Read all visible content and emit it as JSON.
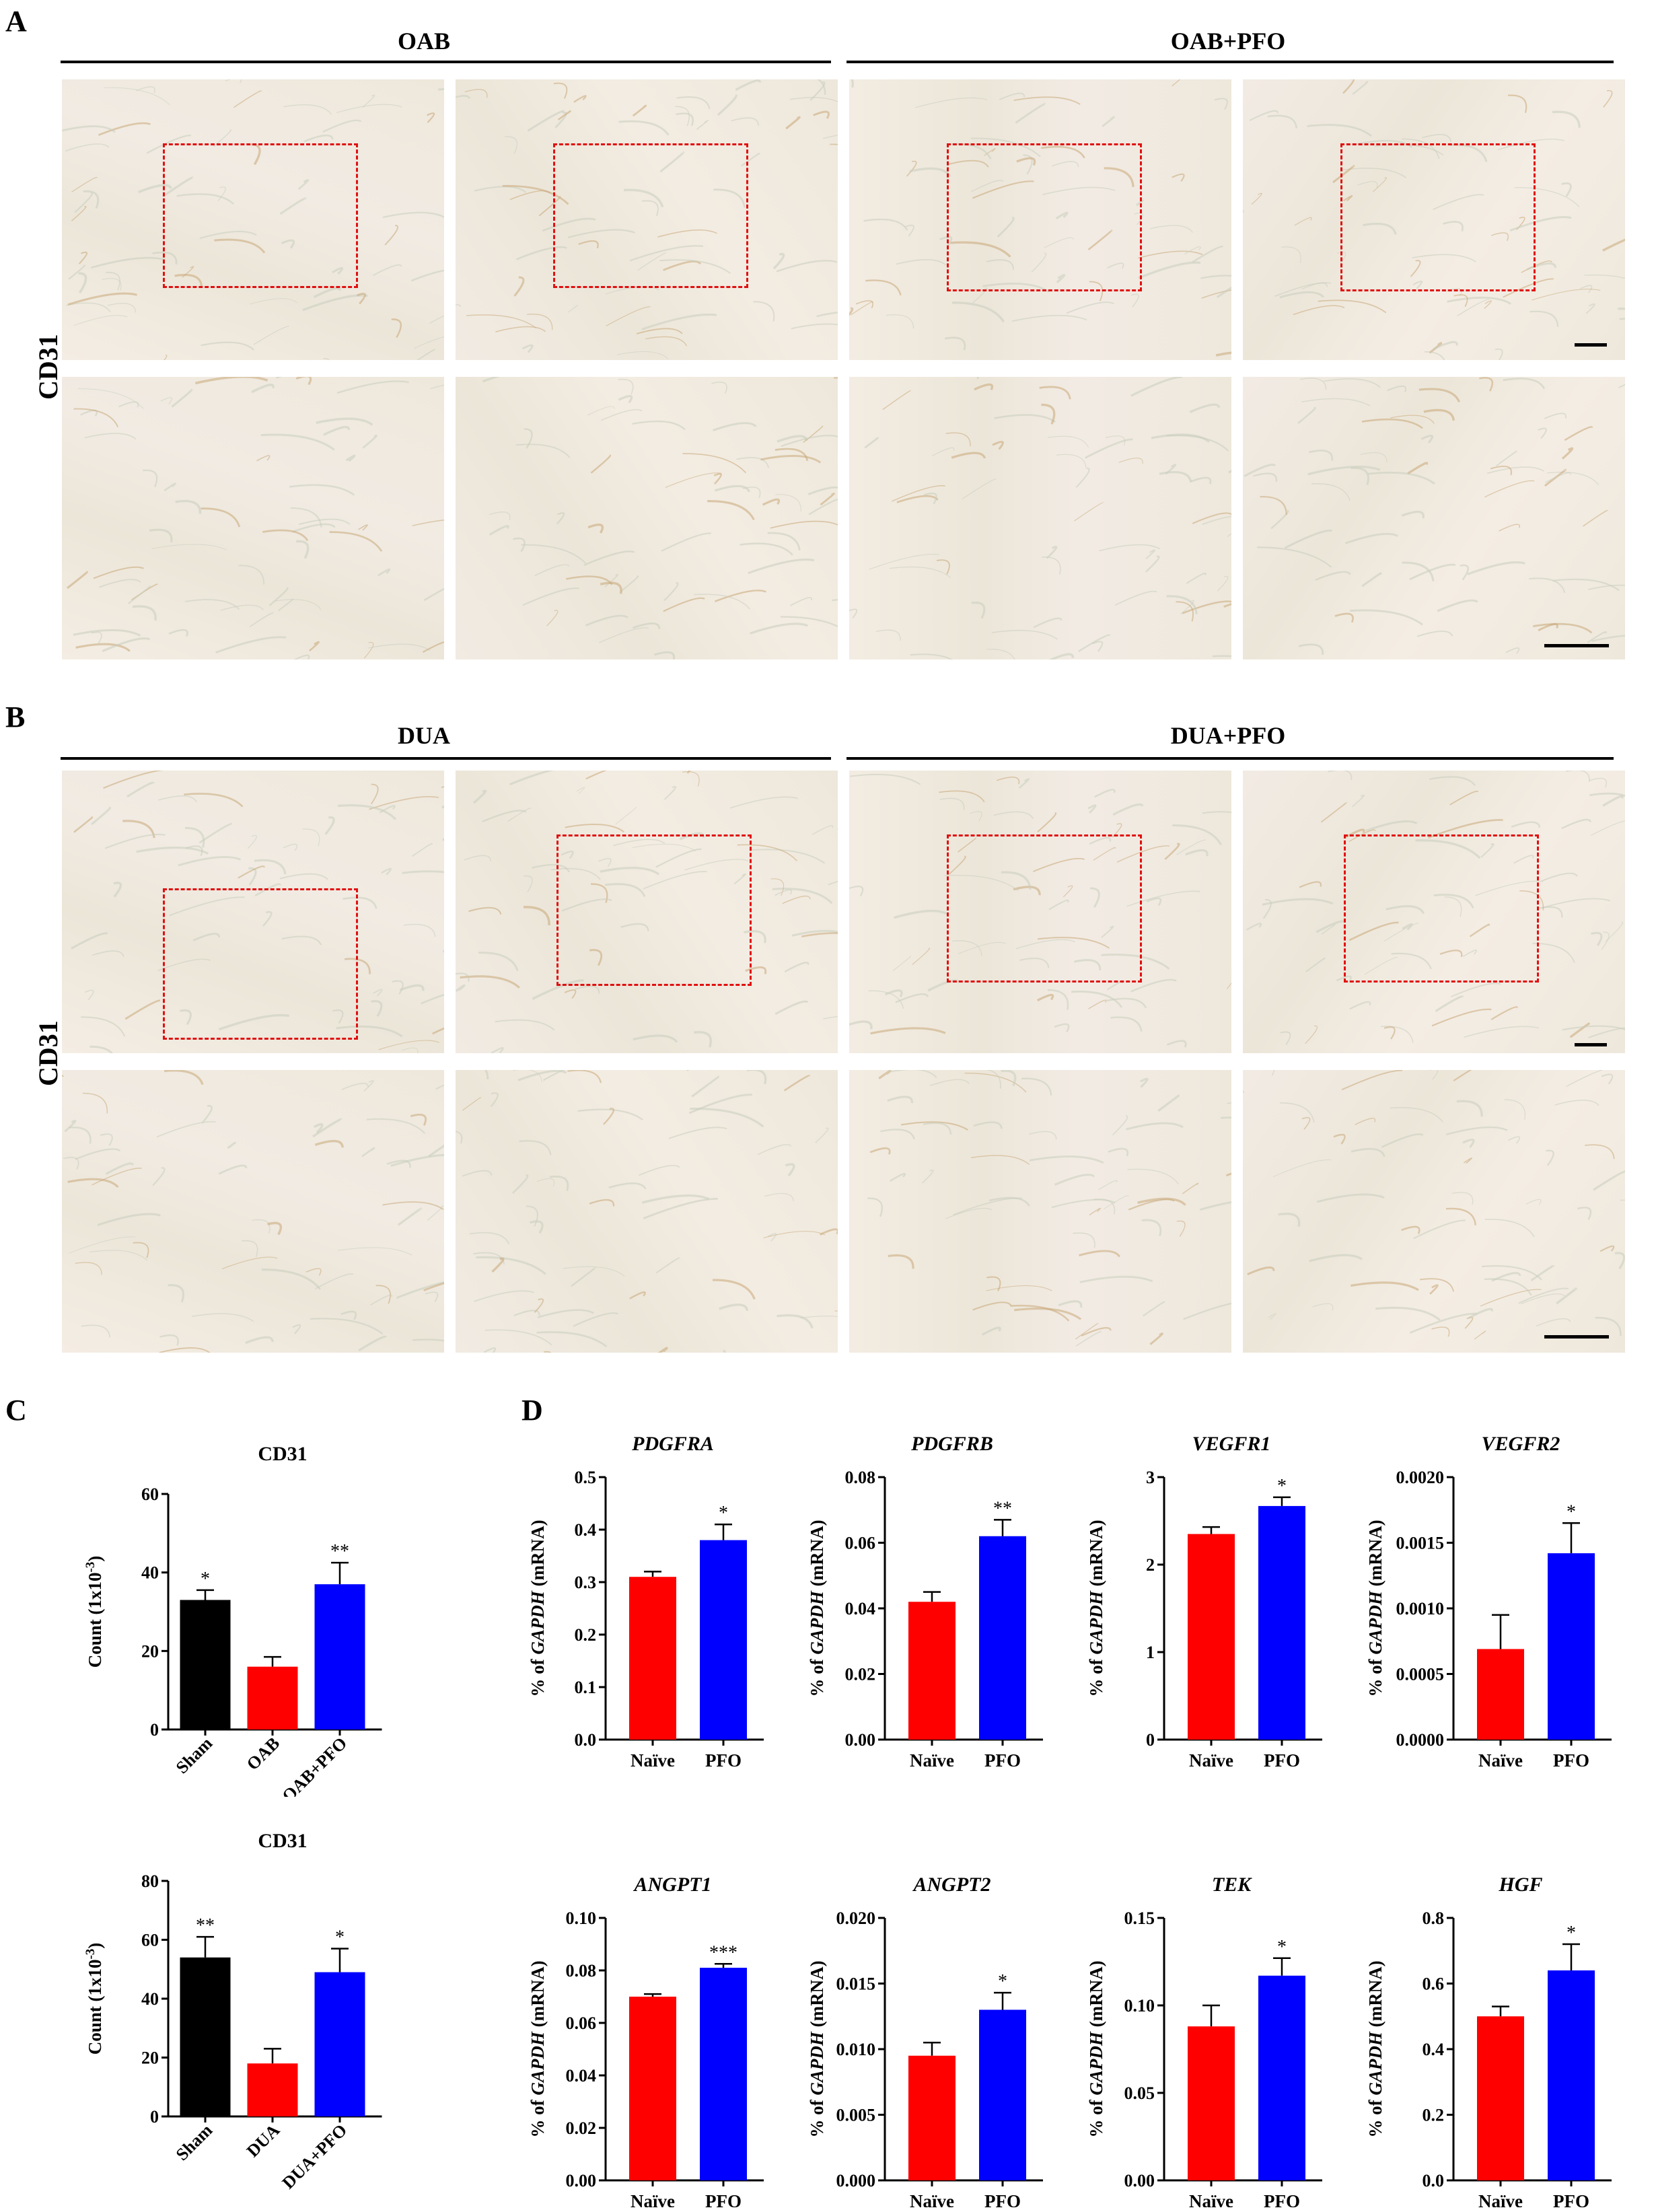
{
  "panels": {
    "A": {
      "letter": "A",
      "groups": [
        "OAB",
        "OAB+PFO"
      ],
      "stain": "CD31"
    },
    "B": {
      "letter": "B",
      "groups": [
        "DUA",
        "DUA+PFO"
      ],
      "stain": "CD31"
    },
    "C": {
      "letter": "C"
    },
    "D": {
      "letter": "D"
    }
  },
  "colors": {
    "sham": "#000000",
    "disease": "#ff0000",
    "treated": "#0000ff",
    "roi": "#e01010",
    "tissue": "#f3ebe2"
  },
  "chart_data": [
    {
      "id": "c1",
      "type": "bar",
      "title": "CD31",
      "ylabel": "Count (1x10-3)",
      "ylim": [
        0,
        60
      ],
      "yticks": [
        0,
        20,
        40,
        60
      ],
      "ytick_labels": [
        "0",
        "20",
        "40",
        "60"
      ],
      "categories": [
        "Sham",
        "OAB",
        "OAB+PFO"
      ],
      "values": [
        33,
        16,
        37
      ],
      "errors": [
        2.5,
        2.5,
        5.5
      ],
      "significance": [
        "*",
        "",
        "**"
      ],
      "colors": [
        "#000000",
        "#ff0000",
        "#0000ff"
      ]
    },
    {
      "id": "c2",
      "type": "bar",
      "title": "CD31",
      "ylabel": "Count (1x10-3)",
      "ylim": [
        0,
        80
      ],
      "yticks": [
        0,
        20,
        40,
        60,
        80
      ],
      "ytick_labels": [
        "0",
        "20",
        "40",
        "60",
        "80"
      ],
      "categories": [
        "Sham",
        "DUA",
        "DUA+PFO"
      ],
      "values": [
        54,
        18,
        49
      ],
      "errors": [
        7,
        5,
        8
      ],
      "significance": [
        "**",
        "",
        "*"
      ],
      "colors": [
        "#000000",
        "#ff0000",
        "#0000ff"
      ]
    },
    {
      "id": "d1",
      "type": "bar",
      "title": "PDGFRA",
      "ylabel_pre": "% of ",
      "ylabel_gene": "GAPDH",
      "ylabel_post": " (mRNA)",
      "ylim": [
        0,
        0.5
      ],
      "yticks": [
        0,
        0.1,
        0.2,
        0.3,
        0.4,
        0.5
      ],
      "ytick_labels": [
        "0.0",
        "0.1",
        "0.2",
        "0.3",
        "0.4",
        "0.5"
      ],
      "categories": [
        "Naïve",
        "PFO"
      ],
      "values": [
        0.31,
        0.38
      ],
      "errors": [
        0.01,
        0.03
      ],
      "significance": [
        "",
        "*"
      ],
      "colors": [
        "#ff0000",
        "#0000ff"
      ]
    },
    {
      "id": "d2",
      "type": "bar",
      "title": "PDGFRB",
      "ylabel_pre": "% of ",
      "ylabel_gene": "GAPDH",
      "ylabel_post": " (mRNA)",
      "ylim": [
        0,
        0.08
      ],
      "yticks": [
        0,
        0.02,
        0.04,
        0.06,
        0.08
      ],
      "ytick_labels": [
        "0.00",
        "0.02",
        "0.04",
        "0.06",
        "0.08"
      ],
      "categories": [
        "Naïve",
        "PFO"
      ],
      "values": [
        0.042,
        0.062
      ],
      "errors": [
        0.003,
        0.005
      ],
      "significance": [
        "",
        "**"
      ],
      "colors": [
        "#ff0000",
        "#0000ff"
      ]
    },
    {
      "id": "d3",
      "type": "bar",
      "title": "VEGFR1",
      "ylabel_pre": "% of ",
      "ylabel_gene": "GAPDH",
      "ylabel_post": " (mRNA)",
      "ylim": [
        0,
        3
      ],
      "yticks": [
        0,
        1,
        2,
        3
      ],
      "ytick_labels": [
        "0",
        "1",
        "2",
        "3"
      ],
      "categories": [
        "Naïve",
        "PFO"
      ],
      "values": [
        2.35,
        2.67
      ],
      "errors": [
        0.08,
        0.1
      ],
      "significance": [
        "",
        "*"
      ],
      "colors": [
        "#ff0000",
        "#0000ff"
      ]
    },
    {
      "id": "d4",
      "type": "bar",
      "title": "VEGFR2",
      "ylabel_pre": "% of ",
      "ylabel_gene": "GAPDH",
      "ylabel_post": " (mRNA)",
      "ylim": [
        0,
        0.002
      ],
      "yticks": [
        0,
        0.0005,
        0.001,
        0.0015,
        0.002
      ],
      "ytick_labels": [
        "0.0000",
        "0.0005",
        "0.0010",
        "0.0015",
        "0.0020"
      ],
      "categories": [
        "Naïve",
        "PFO"
      ],
      "values": [
        0.00069,
        0.00142
      ],
      "errors": [
        0.00026,
        0.00023
      ],
      "significance": [
        "",
        "*"
      ],
      "colors": [
        "#ff0000",
        "#0000ff"
      ]
    },
    {
      "id": "d5",
      "type": "bar",
      "title": "ANGPT1",
      "ylabel_pre": "% of ",
      "ylabel_gene": "GAPDH",
      "ylabel_post": " (mRNA)",
      "ylim": [
        0,
        0.1
      ],
      "yticks": [
        0,
        0.02,
        0.04,
        0.06,
        0.08,
        0.1
      ],
      "ytick_labels": [
        "0.00",
        "0.02",
        "0.04",
        "0.06",
        "0.08",
        "0.10"
      ],
      "categories": [
        "Naïve",
        "PFO"
      ],
      "values": [
        0.07,
        0.081
      ],
      "errors": [
        0.001,
        0.0015
      ],
      "significance": [
        "",
        "***"
      ],
      "colors": [
        "#ff0000",
        "#0000ff"
      ]
    },
    {
      "id": "d6",
      "type": "bar",
      "title": "ANGPT2",
      "ylabel_pre": "% of ",
      "ylabel_gene": "GAPDH",
      "ylabel_post": " (mRNA)",
      "ylim": [
        0,
        0.02
      ],
      "yticks": [
        0,
        0.005,
        0.01,
        0.015,
        0.02
      ],
      "ytick_labels": [
        "0.000",
        "0.005",
        "0.010",
        "0.015",
        "0.020"
      ],
      "categories": [
        "Naïve",
        "PFO"
      ],
      "values": [
        0.0095,
        0.013
      ],
      "errors": [
        0.001,
        0.0013
      ],
      "significance": [
        "",
        "*"
      ],
      "colors": [
        "#ff0000",
        "#0000ff"
      ]
    },
    {
      "id": "d7",
      "type": "bar",
      "title": "TEK",
      "ylabel_pre": "% of ",
      "ylabel_gene": "GAPDH",
      "ylabel_post": " (mRNA)",
      "ylim": [
        0,
        0.15
      ],
      "yticks": [
        0,
        0.05,
        0.1,
        0.15
      ],
      "ytick_labels": [
        "0.00",
        "0.05",
        "0.10",
        "0.15"
      ],
      "categories": [
        "Naïve",
        "PFO"
      ],
      "values": [
        0.088,
        0.117
      ],
      "errors": [
        0.012,
        0.01
      ],
      "significance": [
        "",
        "*"
      ],
      "colors": [
        "#ff0000",
        "#0000ff"
      ]
    },
    {
      "id": "d8",
      "type": "bar",
      "title": "HGF",
      "ylabel_pre": "% of ",
      "ylabel_gene": "GAPDH",
      "ylabel_post": " (mRNA)",
      "ylim": [
        0,
        0.8
      ],
      "yticks": [
        0,
        0.2,
        0.4,
        0.6,
        0.8
      ],
      "ytick_labels": [
        "0.0",
        "0.2",
        "0.4",
        "0.6",
        "0.8"
      ],
      "categories": [
        "Naïve",
        "PFO"
      ],
      "values": [
        0.5,
        0.64
      ],
      "errors": [
        0.03,
        0.08
      ],
      "significance": [
        "",
        "*"
      ],
      "colors": [
        "#ff0000",
        "#0000ff"
      ]
    }
  ]
}
